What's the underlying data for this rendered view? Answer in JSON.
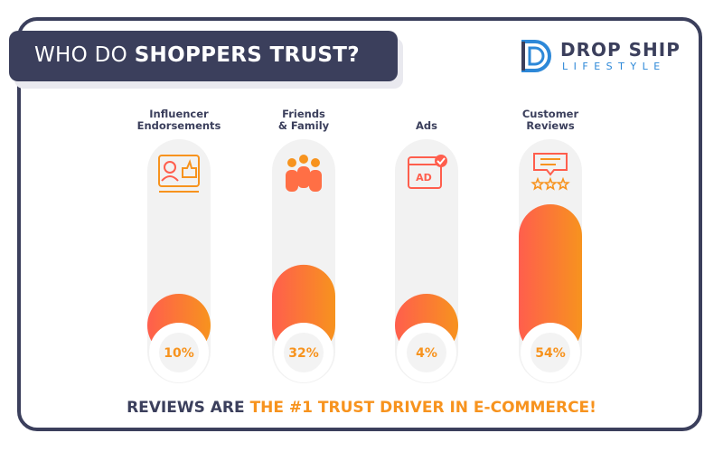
{
  "header": {
    "title_prefix": "WHO DO ",
    "title_bold": "SHOPPERS TRUST?"
  },
  "logo": {
    "top_text": "DROP SHIP",
    "bottom_text": "LIFESTYLE",
    "brand_color": "#2d88d8"
  },
  "chart_data": {
    "type": "bar",
    "title": "WHO DO SHOPPERS TRUST?",
    "categories": [
      {
        "label_lines": [
          "Influencer",
          "Endorsements"
        ],
        "icon": "influencer-endorsement-icon"
      },
      {
        "label_lines": [
          "Friends",
          "& Family"
        ],
        "icon": "friends-family-icon"
      },
      {
        "label_lines": [
          "Ads"
        ],
        "icon": "ads-icon"
      },
      {
        "label_lines": [
          "Customer",
          "Reviews"
        ],
        "icon": "customer-reviews-icon"
      }
    ],
    "values": [
      10,
      32,
      4,
      54
    ],
    "value_labels": [
      "10%",
      "32%",
      "4%",
      "54%"
    ],
    "ylim": [
      0,
      54
    ],
    "colors": {
      "bar_gradient_start": "#ff5e4d",
      "bar_gradient_end": "#f7931e",
      "track": "#f2f2f2",
      "text": "#3b3f5c",
      "value_text": "#f7931e"
    }
  },
  "footer": {
    "prefix": "REVIEWS ARE ",
    "highlight": "THE #1 TRUST DRIVER IN E-COMMERCE!"
  },
  "colors": {
    "navy": "#3b3f5c",
    "orange": "#f7931e",
    "red": "#ff5e4d"
  }
}
